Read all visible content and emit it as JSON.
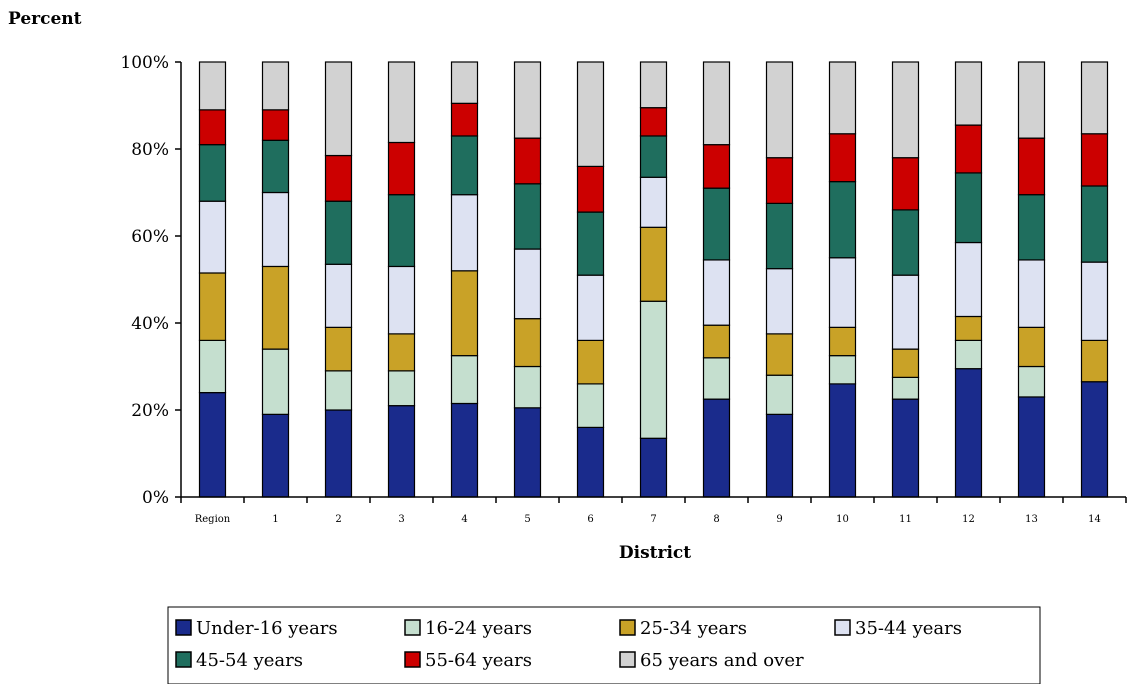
{
  "chart_data": {
    "type": "bar",
    "stacked": true,
    "title": "",
    "ylabel": "Percent",
    "xlabel": "District",
    "ylim": [
      0,
      100
    ],
    "yticks": [
      "0%",
      "20%",
      "40%",
      "60%",
      "80%",
      "100%"
    ],
    "categories": [
      "Region",
      "1",
      "2",
      "3",
      "4",
      "5",
      "6",
      "7",
      "8",
      "9",
      "10",
      "11",
      "12",
      "13",
      "14"
    ],
    "legend_position": "bottom",
    "series": [
      {
        "name": "Under-16 years",
        "color": "#1a2b8c",
        "values": [
          24,
          19,
          20,
          21,
          21.5,
          20.5,
          16,
          13.5,
          22.5,
          19,
          26,
          22.5,
          29.5,
          23,
          26.5
        ]
      },
      {
        "name": "16-24 years",
        "color": "#c5dfcf",
        "values": [
          12,
          15,
          9,
          8,
          11,
          9.5,
          10,
          31.5,
          9.5,
          9,
          6.5,
          5,
          6.5,
          7,
          0
        ]
      },
      {
        "name": "25-34 years",
        "color": "#c9a227",
        "values": [
          15.5,
          19,
          10,
          8.5,
          19.5,
          11,
          10,
          17,
          7.5,
          9.5,
          6.5,
          6.5,
          5.5,
          9,
          9.5
        ]
      },
      {
        "name": "35-44 years",
        "color": "#dde2f2",
        "values": [
          16.5,
          17,
          14.5,
          15.5,
          17.5,
          16,
          15,
          11.5,
          15,
          15,
          16,
          17,
          17,
          15.5,
          18
        ]
      },
      {
        "name": "45-54 years",
        "color": "#1f6e5e",
        "values": [
          13,
          12,
          14.5,
          16.5,
          13.5,
          15,
          14.5,
          9.5,
          16.5,
          15,
          17.5,
          15,
          16,
          15,
          17.5
        ]
      },
      {
        "name": "55-64 years",
        "color": "#cc0000",
        "values": [
          8,
          7,
          10.5,
          12,
          7.5,
          10.5,
          10.5,
          6.5,
          10,
          10.5,
          11,
          12,
          11,
          13,
          12
        ]
      },
      {
        "name": "65 years and over",
        "color": "#d2d2d2",
        "values": [
          11,
          11,
          21.5,
          18.5,
          9.5,
          17.5,
          24,
          10.5,
          19,
          22,
          16.5,
          22,
          14.5,
          17.5,
          16.5
        ]
      }
    ]
  }
}
